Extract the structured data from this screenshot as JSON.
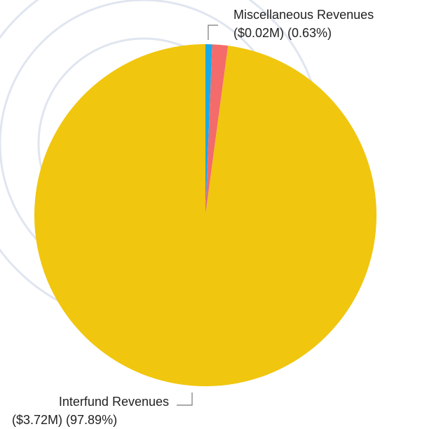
{
  "chart_data": {
    "type": "pie",
    "title": "",
    "slices": [
      {
        "label": "Miscellaneous Revenues",
        "value_text": "($0.02M) (0.63%)",
        "value": 0.02,
        "percent": 0.63,
        "color": "#1ba9e6"
      },
      {
        "label": "",
        "value_text": "",
        "value": 0.06,
        "percent": 1.48,
        "color": "#f46b6b"
      },
      {
        "label": "Interfund Revenues",
        "value_text": "($3.72M) (97.89%)",
        "value": 3.72,
        "percent": 97.89,
        "color": "#f0c60f"
      }
    ]
  },
  "watermark_color": "#c9d2e3"
}
